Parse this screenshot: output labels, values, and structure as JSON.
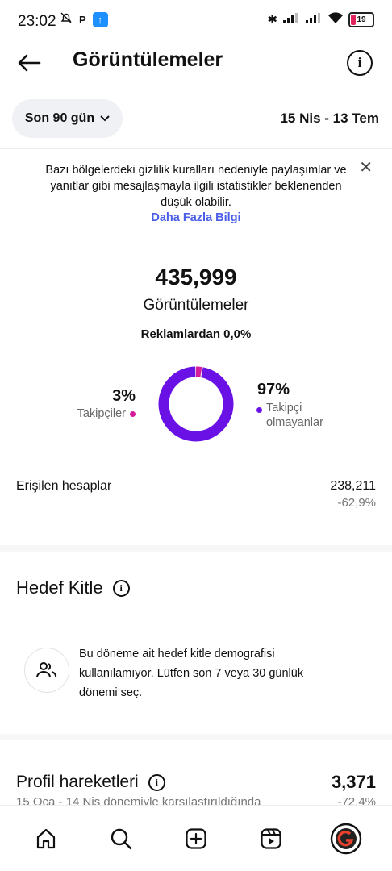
{
  "status_bar": {
    "time": "23:02",
    "battery": "19",
    "colors": {
      "battery_low": "#e0245e",
      "app_badge": "#1e90ff"
    }
  },
  "header": {
    "title": "Görüntülemeler"
  },
  "date_filter": {
    "range_label": "Son 90 gün",
    "date_range": "15 Nis - 13 Tem"
  },
  "notice": {
    "text": "Bazı bölgelerdeki gizlilik kuralları nedeniyle paylaşımlar ve yanıtlar gibi mesajlaşmayla ilgili istatistikler beklenenden düşük olabilir.",
    "link": "Daha Fazla Bilgi"
  },
  "views": {
    "total": "435,999",
    "label": "Görüntülemeler",
    "ads_text": "Reklamlardan 0,0%",
    "followers": {
      "percent": "3%",
      "label": "Takipçiler",
      "share": 0.03,
      "color": "#d51c9c"
    },
    "non_followers": {
      "percent": "97%",
      "label": "Takipçi olmayanlar",
      "share": 0.97,
      "color": "#6a12e6"
    }
  },
  "reach": {
    "label": "Erişilen hesaplar",
    "value": "238,211",
    "change": "-62,9%"
  },
  "audience": {
    "title": "Hedef Kitle",
    "message": "Bu döneme ait hedef kitle demografisi kullanılamıyor. Lütfen son 7 veya 30 günlük dönemi seç."
  },
  "profile_activity": {
    "title": "Profil hareketleri",
    "value": "3,371",
    "comparison": "15 Oca - 14 Nis dönemiyle karşılaştırıldığında",
    "change": "-72,4%"
  },
  "bottom_nav": [
    "home-icon",
    "search-icon",
    "create-icon",
    "reels-icon",
    "profile-icon"
  ]
}
